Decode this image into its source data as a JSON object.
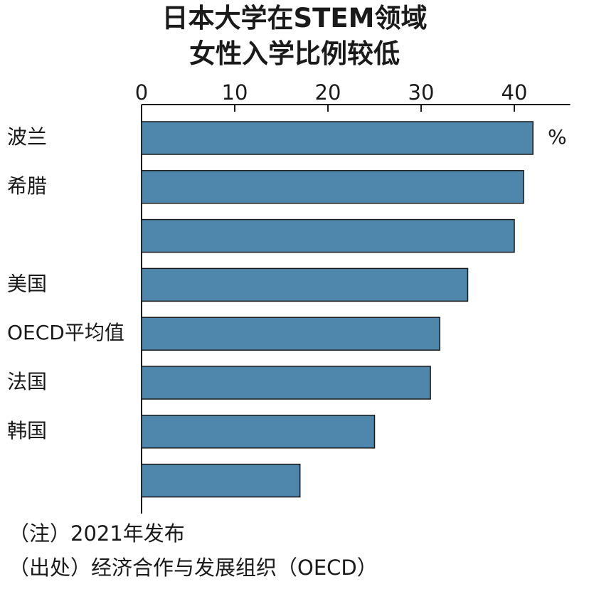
{
  "title_line1": "日本大学在STEM领域",
  "title_line2": "女性入学比例较低",
  "note": "（注）2021年发布",
  "source": "（出处）经济合作与发展组织（OECD）",
  "chart_data": {
    "type": "bar",
    "orientation": "horizontal",
    "title": "日本大学在STEM领域女性入学比例较低",
    "unit_label": "%",
    "categories": [
      "波兰",
      "希腊",
      "",
      "美国",
      "OECD平均值",
      "法国",
      "韩国",
      ""
    ],
    "values": [
      42,
      41,
      40,
      35,
      32,
      31,
      25,
      17
    ],
    "xlim": [
      0,
      46
    ],
    "xticks": [
      0,
      10,
      20,
      30,
      40
    ],
    "tick_labels": [
      "0",
      "10",
      "20",
      "30",
      "40"
    ],
    "bar_color": "#4f86ac",
    "bar_edge_color": "#1a1a1a",
    "grid": false
  }
}
